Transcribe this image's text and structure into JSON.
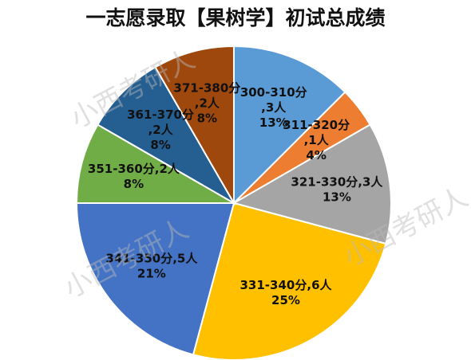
{
  "chart_data": {
    "type": "pie",
    "title": "一志愿录取【果树学】初试总成绩",
    "categories": [
      "300-310分",
      "311-320分",
      "321-330分",
      "331-340分",
      "341-350分",
      "351-360分",
      "361-370分",
      "371-380分"
    ],
    "values": [
      3,
      1,
      3,
      6,
      5,
      2,
      2,
      2
    ],
    "value_labels": [
      "3人",
      "1人",
      "3人",
      "6人",
      "5人",
      "2人",
      "2人",
      "2人"
    ],
    "share_labels": [
      "13%",
      "4%",
      "13%",
      "25%",
      "21%",
      "8%",
      "8%",
      "8%"
    ],
    "separator": ",",
    "colors": [
      "#5b9bd5",
      "#ed7d31",
      "#a5a5a5",
      "#ffc000",
      "#4472c4",
      "#70ad47",
      "#255e91",
      "#9e480e"
    ],
    "watermark": "小西考研人"
  }
}
